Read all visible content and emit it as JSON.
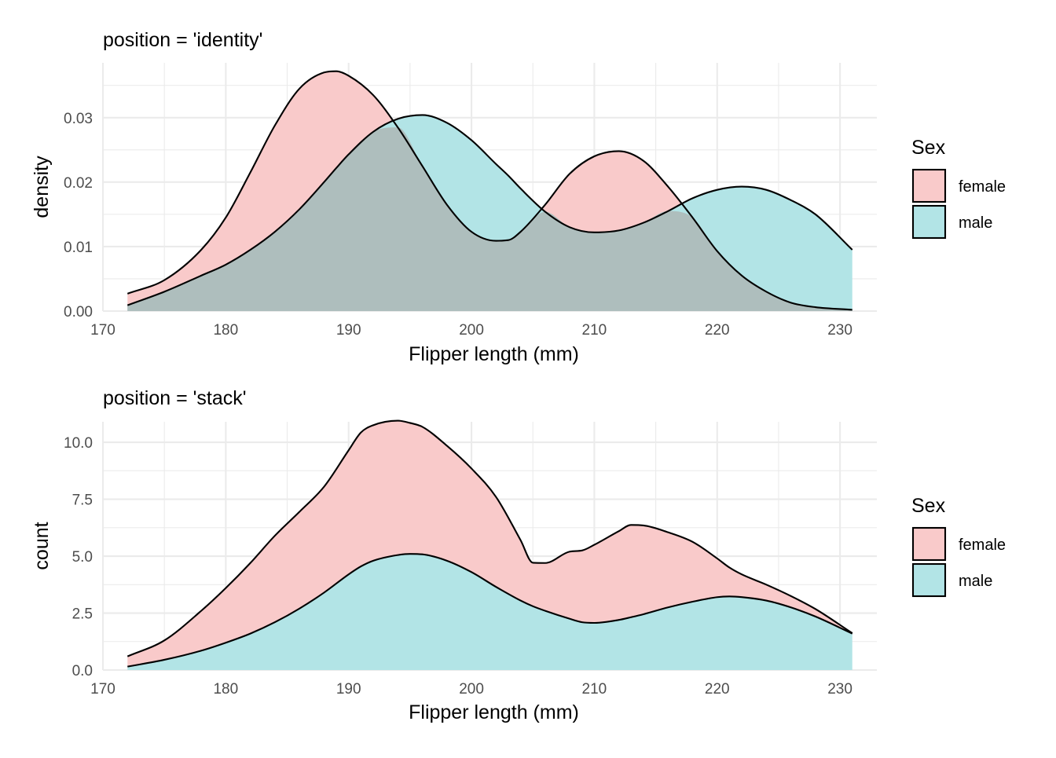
{
  "chart_data": [
    {
      "type": "area",
      "title": "position = 'identity'",
      "xlabel": "Flipper length (mm)",
      "ylabel": "density",
      "xlim": [
        170,
        233
      ],
      "ylim": [
        0,
        0.0385
      ],
      "x_ticks": [
        170,
        180,
        190,
        200,
        210,
        220,
        230
      ],
      "x_tick_labels": [
        "170",
        "180",
        "190",
        "200",
        "210",
        "220",
        "230"
      ],
      "y_ticks": [
        0,
        0.01,
        0.02,
        0.03
      ],
      "y_tick_labels": [
        "0.00",
        "0.01",
        "0.02",
        "0.03"
      ],
      "grid": true,
      "legend": {
        "title": "Sex",
        "placement": "right",
        "entries": [
          "female",
          "male"
        ]
      },
      "x": [
        172,
        175,
        178,
        180,
        182,
        184,
        186,
        188,
        189,
        190,
        192,
        194,
        196,
        198,
        200,
        202,
        203,
        204,
        206,
        208,
        210,
        212,
        214,
        216,
        218,
        220,
        222,
        224,
        226,
        228,
        231
      ],
      "series": [
        {
          "name": "female",
          "values": [
            0.0027,
            0.0048,
            0.0095,
            0.0145,
            0.0215,
            0.0288,
            0.0345,
            0.037,
            0.0372,
            0.0365,
            0.0335,
            0.0285,
            0.0225,
            0.0165,
            0.0123,
            0.0109,
            0.011,
            0.0123,
            0.0165,
            0.0213,
            0.024,
            0.0248,
            0.0233,
            0.0193,
            0.0145,
            0.0093,
            0.0055,
            0.003,
            0.0013,
            0.0006,
            0.0002
          ]
        },
        {
          "name": "male",
          "values": [
            0.0009,
            0.003,
            0.0055,
            0.0072,
            0.0095,
            0.0123,
            0.0158,
            0.02,
            0.0222,
            0.0243,
            0.0278,
            0.0298,
            0.0304,
            0.0292,
            0.0265,
            0.0228,
            0.021,
            0.019,
            0.0154,
            0.013,
            0.0122,
            0.0125,
            0.0137,
            0.0155,
            0.0175,
            0.0188,
            0.0193,
            0.0188,
            0.0172,
            0.015,
            0.0095
          ]
        }
      ],
      "colors": {
        "female": "#F8766D",
        "male": "#00BFC4",
        "female_fill": "#f9caca",
        "male_fill": "#b2e4e6",
        "overlap_fill": "#aebebd"
      }
    },
    {
      "type": "area",
      "stacked": true,
      "title": "position = 'stack'",
      "xlabel": "Flipper length (mm)",
      "ylabel": "count",
      "xlim": [
        170,
        233
      ],
      "ylim": [
        0,
        10.9
      ],
      "x_ticks": [
        170,
        180,
        190,
        200,
        210,
        220,
        230
      ],
      "x_tick_labels": [
        "170",
        "180",
        "190",
        "200",
        "210",
        "220",
        "230"
      ],
      "y_ticks": [
        0,
        2.5,
        5.0,
        7.5,
        10.0
      ],
      "y_tick_labels": [
        "0.0",
        "2.5",
        "5.0",
        "7.5",
        "10.0"
      ],
      "grid": true,
      "legend": {
        "title": "Sex",
        "placement": "right",
        "entries": [
          "female",
          "male"
        ]
      },
      "x": [
        172,
        175,
        178,
        180,
        182,
        184,
        186,
        188,
        190,
        191,
        192,
        194,
        195,
        196,
        198,
        200,
        202,
        204,
        205,
        206,
        208,
        209,
        210,
        212,
        213,
        214,
        216,
        218,
        220,
        221,
        222,
        224,
        226,
        228,
        231
      ],
      "series": [
        {
          "name": "male",
          "values": [
            0.15,
            0.45,
            0.85,
            1.2,
            1.6,
            2.1,
            2.7,
            3.4,
            4.2,
            4.55,
            4.8,
            5.05,
            5.1,
            5.08,
            4.8,
            4.3,
            3.65,
            3.05,
            2.8,
            2.6,
            2.25,
            2.1,
            2.07,
            2.2,
            2.32,
            2.45,
            2.75,
            3.0,
            3.2,
            3.23,
            3.2,
            3.05,
            2.75,
            2.35,
            1.6
          ]
        },
        {
          "name": "female",
          "values": [
            0.45,
            0.85,
            1.75,
            2.4,
            3.1,
            3.8,
            4.25,
            4.65,
            5.45,
            5.88,
            5.95,
            5.9,
            5.75,
            5.6,
            5.05,
            4.55,
            3.95,
            2.65,
            1.91,
            2.1,
            2.95,
            3.15,
            3.43,
            3.9,
            4.05,
            3.9,
            3.3,
            2.63,
            1.7,
            1.27,
            1.0,
            0.7,
            0.5,
            0.33,
            0.02
          ]
        }
      ],
      "colors": {
        "female": "#F8766D",
        "male": "#00BFC4",
        "female_fill": "#f9caca",
        "male_fill": "#b2e4e6"
      }
    }
  ]
}
